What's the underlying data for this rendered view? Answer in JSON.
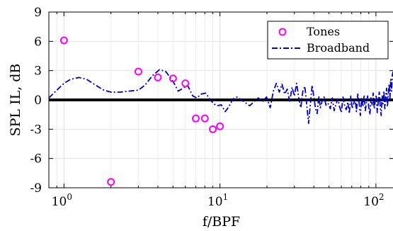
{
  "chart_data": {
    "type": "scatter",
    "xlabel": "f/BPF",
    "ylabel": "SPL IL, dB",
    "xscale": "log",
    "xlim": [
      0.8,
      130
    ],
    "ylim": [
      -9,
      9
    ],
    "grid": true,
    "legend_position": "top-right",
    "x_ticks": [
      {
        "value": 1,
        "mantissa": "10",
        "exponent": "0"
      },
      {
        "value": 10,
        "mantissa": "10",
        "exponent": "1"
      },
      {
        "value": 100,
        "mantissa": "10",
        "exponent": "2"
      }
    ],
    "y_ticks": [
      {
        "value": 9,
        "label": "9"
      },
      {
        "value": 6,
        "label": "6"
      },
      {
        "value": 3,
        "label": "3"
      },
      {
        "value": 0,
        "label": "0"
      },
      {
        "value": -3,
        "label": "-3"
      },
      {
        "value": -6,
        "label": "-6"
      },
      {
        "value": -9,
        "label": "-9"
      }
    ],
    "reference_line": {
      "y": 0,
      "color": "#000000"
    },
    "series": [
      {
        "name": "Tones",
        "kind": "markers",
        "color": "#ff00ff",
        "points": [
          {
            "x": 1,
            "y": 6.1
          },
          {
            "x": 2,
            "y": -8.4
          },
          {
            "x": 3,
            "y": 2.9
          },
          {
            "x": 4,
            "y": 2.3
          },
          {
            "x": 5,
            "y": 2.2
          },
          {
            "x": 6,
            "y": 1.7
          },
          {
            "x": 7,
            "y": -1.9
          },
          {
            "x": 8,
            "y": -1.9
          },
          {
            "x": 9,
            "y": -3.0
          },
          {
            "x": 10,
            "y": -2.7
          }
        ]
      },
      {
        "name": "Broadband",
        "kind": "dash-dot-line",
        "color": "#0000cc",
        "points": [
          {
            "x": 0.8,
            "y": 0.2
          },
          {
            "x": 0.9,
            "y": 1.0
          },
          {
            "x": 1.0,
            "y": 1.7
          },
          {
            "x": 1.1,
            "y": 2.1
          },
          {
            "x": 1.25,
            "y": 2.3
          },
          {
            "x": 1.4,
            "y": 2.1
          },
          {
            "x": 1.6,
            "y": 1.5
          },
          {
            "x": 1.8,
            "y": 1.0
          },
          {
            "x": 2.0,
            "y": 0.8
          },
          {
            "x": 2.3,
            "y": 0.8
          },
          {
            "x": 2.6,
            "y": 0.9
          },
          {
            "x": 3.0,
            "y": 1.0
          },
          {
            "x": 3.3,
            "y": 1.5
          },
          {
            "x": 3.7,
            "y": 2.5
          },
          {
            "x": 4.1,
            "y": 3.1
          },
          {
            "x": 4.5,
            "y": 2.9
          },
          {
            "x": 5.0,
            "y": 1.9
          },
          {
            "x": 5.4,
            "y": 0.9
          },
          {
            "x": 5.8,
            "y": 1.2
          },
          {
            "x": 6.2,
            "y": 1.5
          },
          {
            "x": 6.7,
            "y": 0.4
          },
          {
            "x": 7.1,
            "y": 0.2
          },
          {
            "x": 7.6,
            "y": 0.6
          },
          {
            "x": 8.1,
            "y": 0.7
          },
          {
            "x": 8.6,
            "y": 0.1
          },
          {
            "x": 9.1,
            "y": -0.4
          },
          {
            "x": 9.6,
            "y": -0.6
          },
          {
            "x": 10.2,
            "y": -0.5
          },
          {
            "x": 10.8,
            "y": -1.2
          },
          {
            "x": 11.4,
            "y": -0.7
          },
          {
            "x": 12.1,
            "y": 0.1
          },
          {
            "x": 12.9,
            "y": 0.3
          },
          {
            "x": 13.7,
            "y": 0.0
          },
          {
            "x": 14.6,
            "y": -0.3
          },
          {
            "x": 15.5,
            "y": -0.6
          },
          {
            "x": 16.5,
            "y": -0.2
          },
          {
            "x": 17.6,
            "y": 0.2
          },
          {
            "x": 18.7,
            "y": -0.2
          },
          {
            "x": 19.9,
            "y": 0.3
          },
          {
            "x": 21.0,
            "y": -0.8
          },
          {
            "x": 22.0,
            "y": 0.9
          },
          {
            "x": 23.0,
            "y": 1.7
          },
          {
            "x": 24.0,
            "y": 0.8
          },
          {
            "x": 25.0,
            "y": 1.6
          },
          {
            "x": 26.0,
            "y": 0.6
          },
          {
            "x": 27.0,
            "y": 1.1
          },
          {
            "x": 28.0,
            "y": -0.2
          },
          {
            "x": 29.0,
            "y": 1.3
          },
          {
            "x": 30.0,
            "y": 0.4
          },
          {
            "x": 31.0,
            "y": 1.7
          },
          {
            "x": 32.0,
            "y": 0.2
          },
          {
            "x": 33.0,
            "y": -0.8
          },
          {
            "x": 34.0,
            "y": 0.9
          },
          {
            "x": 35.0,
            "y": 1.4
          },
          {
            "x": 36.0,
            "y": -0.5
          },
          {
            "x": 37.0,
            "y": -2.4
          },
          {
            "x": 38.0,
            "y": -0.4
          },
          {
            "x": 39.0,
            "y": 1.5
          },
          {
            "x": 40.0,
            "y": 0.3
          },
          {
            "x": 41.0,
            "y": -0.9
          },
          {
            "x": 42.0,
            "y": -1.4
          },
          {
            "x": 43.0,
            "y": 0.4
          },
          {
            "x": 44.0,
            "y": -0.8
          },
          {
            "x": 45.0,
            "y": -0.2
          },
          {
            "x": 46.5,
            "y": 0.3
          },
          {
            "x": 48.0,
            "y": -0.6
          },
          {
            "x": 49.5,
            "y": -0.4
          },
          {
            "x": 51.0,
            "y": -0.9
          },
          {
            "x": 52.5,
            "y": 0.2
          },
          {
            "x": 54.0,
            "y": -1.1
          },
          {
            "x": 55.5,
            "y": -0.4
          },
          {
            "x": 57.0,
            "y": 0.1
          },
          {
            "x": 58.5,
            "y": -0.7
          },
          {
            "x": 60.0,
            "y": -1.3
          },
          {
            "x": 61.5,
            "y": 0.3
          },
          {
            "x": 63.0,
            "y": -0.6
          },
          {
            "x": 64.5,
            "y": -1.0
          },
          {
            "x": 66.0,
            "y": -0.2
          },
          {
            "x": 67.5,
            "y": -1.4
          },
          {
            "x": 69.0,
            "y": 0.4
          },
          {
            "x": 70.5,
            "y": -0.9
          },
          {
            "x": 72.0,
            "y": -0.4
          },
          {
            "x": 73.5,
            "y": 0.2
          },
          {
            "x": 75.0,
            "y": -1.2
          },
          {
            "x": 76.5,
            "y": 0.6
          },
          {
            "x": 78.0,
            "y": -0.3
          },
          {
            "x": 79.5,
            "y": -1.6
          },
          {
            "x": 81.0,
            "y": 0.2
          },
          {
            "x": 82.5,
            "y": -0.7
          },
          {
            "x": 84.0,
            "y": 0.5
          },
          {
            "x": 85.5,
            "y": -1.1
          },
          {
            "x": 87.0,
            "y": -0.2
          },
          {
            "x": 88.5,
            "y": 0.4
          },
          {
            "x": 90.0,
            "y": -0.8
          },
          {
            "x": 91.5,
            "y": -1.5
          },
          {
            "x": 93.0,
            "y": 0.3
          },
          {
            "x": 94.5,
            "y": -0.5
          },
          {
            "x": 96.0,
            "y": 0.7
          },
          {
            "x": 97.5,
            "y": -0.9
          },
          {
            "x": 99.0,
            "y": -0.1
          },
          {
            "x": 100.5,
            "y": 0.5
          },
          {
            "x": 102.0,
            "y": -1.3
          },
          {
            "x": 103.5,
            "y": -0.2
          },
          {
            "x": 105.0,
            "y": 0.8
          },
          {
            "x": 106.5,
            "y": -0.6
          },
          {
            "x": 108.0,
            "y": -1.6
          },
          {
            "x": 109.5,
            "y": 0.4
          },
          {
            "x": 111.0,
            "y": -0.4
          },
          {
            "x": 112.5,
            "y": 0.9
          },
          {
            "x": 114.0,
            "y": -0.9
          },
          {
            "x": 115.5,
            "y": 0.3
          },
          {
            "x": 117.0,
            "y": 1.2
          },
          {
            "x": 118.5,
            "y": -0.7
          },
          {
            "x": 120.0,
            "y": 0.6
          },
          {
            "x": 121.5,
            "y": 1.6
          },
          {
            "x": 123.0,
            "y": 0.2
          },
          {
            "x": 124.5,
            "y": 2.1
          },
          {
            "x": 126.0,
            "y": 0.9
          },
          {
            "x": 127.5,
            "y": 2.6
          },
          {
            "x": 129.0,
            "y": 2.9
          }
        ]
      }
    ]
  }
}
